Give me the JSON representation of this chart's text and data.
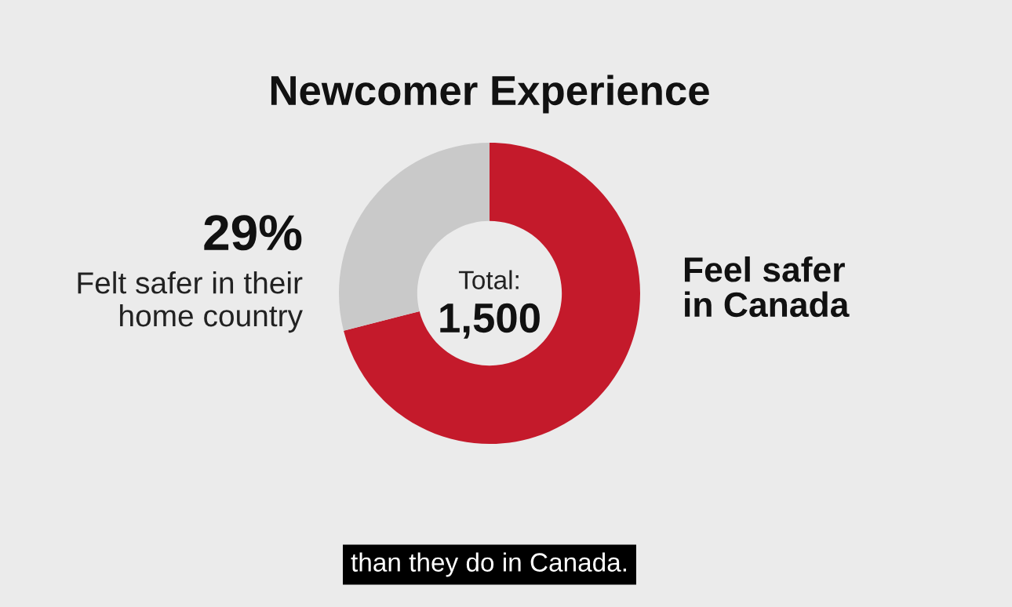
{
  "chart_data": {
    "type": "donut",
    "title": "Newcomer Experience",
    "categories": [
      "Feel safer\nin Canada",
      "Felt safer in their\nhome country"
    ],
    "values": [
      71,
      29
    ],
    "colors": [
      "#c41a2b",
      "#c9c9c9"
    ],
    "value_labels": [
      null,
      "29%"
    ],
    "annotations": [
      "Total:",
      "1,500",
      "than they do in Canada."
    ]
  }
}
